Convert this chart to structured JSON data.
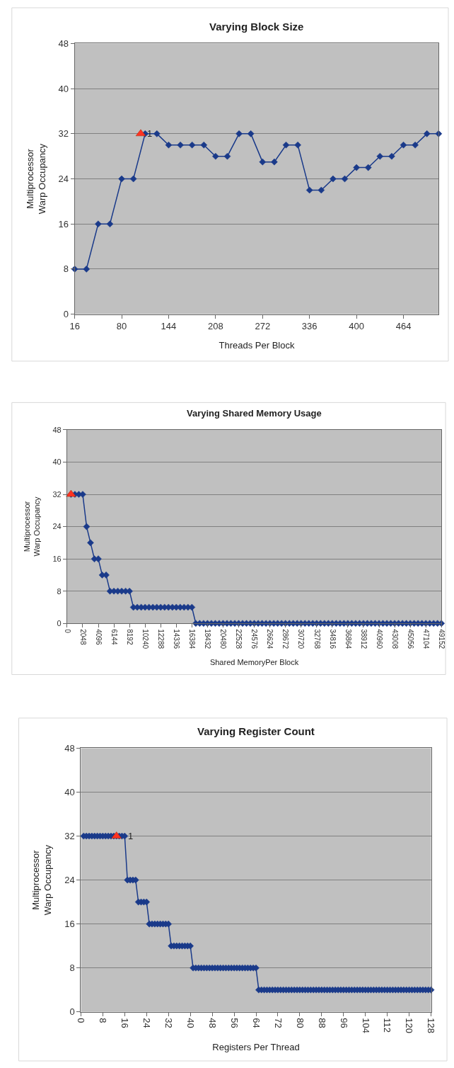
{
  "chart_data": [
    {
      "type": "line",
      "title": "Varying Block Size",
      "xlabel": "Threads Per Block",
      "ylabel": "Multiprocessor\nWarp Occupancy",
      "xlim": [
        16,
        512
      ],
      "xticks": [
        16,
        80,
        144,
        208,
        272,
        336,
        400,
        464
      ],
      "ylim": [
        0,
        48
      ],
      "yticks": [
        0,
        8,
        16,
        24,
        32,
        40,
        48
      ],
      "grid": "y",
      "marker": "diamond",
      "series": [
        {
          "color": "#1a3a8a",
          "x": [
            16,
            32,
            48,
            64,
            80,
            96,
            112,
            128,
            144,
            160,
            176,
            192,
            208,
            224,
            240,
            256,
            272,
            288,
            304,
            320,
            336,
            352,
            368,
            384,
            400,
            416,
            432,
            448,
            464,
            480,
            496,
            512
          ],
          "values": [
            8,
            8,
            16,
            16,
            24,
            24,
            32,
            32,
            30,
            30,
            30,
            30,
            28,
            28,
            32,
            32,
            27,
            27,
            30,
            30,
            22,
            22,
            24,
            24,
            26,
            26,
            28,
            28,
            30,
            30,
            32,
            32
          ]
        },
        {
          "type": "scatter",
          "marker": "triangle",
          "color": "#ff3322",
          "x": [
            106
          ],
          "values": [
            32
          ]
        }
      ],
      "annotations": [
        {
          "text": "1",
          "x": 118,
          "y": 32
        }
      ]
    },
    {
      "type": "line",
      "title": "Varying Shared Memory Usage",
      "xlabel": "Shared MemoryPer Block",
      "ylabel": "Multiprocessor\nWarp Occupancy",
      "xlim": [
        0,
        49152
      ],
      "xticks": [
        0,
        2048,
        4096,
        6144,
        8192,
        10240,
        12288,
        14336,
        16384,
        18432,
        20480,
        22528,
        24576,
        26624,
        28672,
        30720,
        32768,
        34816,
        36864,
        38912,
        40960,
        43008,
        45056,
        47104,
        49152
      ],
      "ylim": [
        0,
        48
      ],
      "yticks": [
        0,
        8,
        16,
        24,
        32,
        40,
        48
      ],
      "grid": "y",
      "marker": "diamond",
      "series": [
        {
          "color": "#1a3a8a",
          "x": [
            512,
            1024,
            1536,
            2048,
            2560,
            3072,
            3584,
            4096,
            4608,
            5120,
            5632,
            6144,
            6656,
            7168,
            7680,
            8192,
            8704,
            9216,
            9728,
            10240,
            10752,
            11264,
            11776,
            12288,
            12800,
            13312,
            13824,
            14336,
            14848,
            15360,
            15872,
            16384,
            16896,
            17408,
            17920,
            18432,
            18944,
            19456,
            19968,
            20480,
            20992,
            21504,
            22016,
            22528,
            23040,
            23552,
            24064,
            24576,
            25088,
            25600,
            26112,
            26624,
            27136,
            27648,
            28160,
            28672,
            29184,
            29696,
            30208,
            30720,
            31232,
            31744,
            32256,
            32768,
            33280,
            33792,
            34304,
            34816,
            35328,
            35840,
            36352,
            36864,
            37376,
            37888,
            38400,
            38912,
            39424,
            39936,
            40448,
            40960,
            41472,
            41984,
            42496,
            43008,
            43520,
            44032,
            44544,
            45056,
            45568,
            46080,
            46592,
            47104,
            47616,
            48128,
            48640,
            49152
          ],
          "values": [
            32,
            32,
            32,
            32,
            24,
            20,
            16,
            16,
            12,
            12,
            8,
            8,
            8,
            8,
            8,
            8,
            4,
            4,
            4,
            4,
            4,
            4,
            4,
            4,
            4,
            4,
            4,
            4,
            4,
            4,
            4,
            4,
            0,
            0,
            0,
            0,
            0,
            0,
            0,
            0,
            0,
            0,
            0,
            0,
            0,
            0,
            0,
            0,
            0,
            0,
            0,
            0,
            0,
            0,
            0,
            0,
            0,
            0,
            0,
            0,
            0,
            0,
            0,
            0,
            0,
            0,
            0,
            0,
            0,
            0,
            0,
            0,
            0,
            0,
            0,
            0,
            0,
            0,
            0,
            0,
            0,
            0,
            0,
            0,
            0,
            0,
            0,
            0,
            0,
            0,
            0,
            0,
            0,
            0,
            0,
            0
          ]
        },
        {
          "type": "scatter",
          "marker": "triangle",
          "color": "#ff3322",
          "x": [
            512
          ],
          "values": [
            32
          ]
        }
      ]
    },
    {
      "type": "line",
      "title": "Varying Register Count",
      "xlabel": "Registers Per Thread",
      "ylabel": "Multiprocessor\nWarp Occupancy",
      "xlim": [
        0,
        128
      ],
      "xticks": [
        0,
        8,
        16,
        24,
        32,
        40,
        48,
        56,
        64,
        72,
        80,
        88,
        96,
        104,
        112,
        120,
        128
      ],
      "ylim": [
        0,
        48
      ],
      "yticks": [
        0,
        8,
        16,
        24,
        32,
        40,
        48
      ],
      "grid": "y",
      "marker": "diamond",
      "series": [
        {
          "color": "#1a3a8a",
          "x": [
            1,
            2,
            3,
            4,
            5,
            6,
            7,
            8,
            9,
            10,
            11,
            12,
            13,
            14,
            15,
            16,
            17,
            18,
            19,
            20,
            21,
            22,
            23,
            24,
            25,
            26,
            27,
            28,
            29,
            30,
            31,
            32,
            33,
            34,
            35,
            36,
            37,
            38,
            39,
            40,
            41,
            42,
            43,
            44,
            45,
            46,
            47,
            48,
            49,
            50,
            51,
            52,
            53,
            54,
            55,
            56,
            57,
            58,
            59,
            60,
            61,
            62,
            63,
            64,
            65,
            66,
            67,
            68,
            69,
            70,
            71,
            72,
            73,
            74,
            75,
            76,
            77,
            78,
            79,
            80,
            81,
            82,
            83,
            84,
            85,
            86,
            87,
            88,
            89,
            90,
            91,
            92,
            93,
            94,
            95,
            96,
            97,
            98,
            99,
            100,
            101,
            102,
            103,
            104,
            105,
            106,
            107,
            108,
            109,
            110,
            111,
            112,
            113,
            114,
            115,
            116,
            117,
            118,
            119,
            120,
            121,
            122,
            123,
            124,
            125,
            126,
            127,
            128
          ],
          "values": [
            32,
            32,
            32,
            32,
            32,
            32,
            32,
            32,
            32,
            32,
            32,
            32,
            32,
            32,
            32,
            32,
            24,
            24,
            24,
            24,
            20,
            20,
            20,
            20,
            16,
            16,
            16,
            16,
            16,
            16,
            16,
            16,
            12,
            12,
            12,
            12,
            12,
            12,
            12,
            12,
            8,
            8,
            8,
            8,
            8,
            8,
            8,
            8,
            8,
            8,
            8,
            8,
            8,
            8,
            8,
            8,
            8,
            8,
            8,
            8,
            8,
            8,
            8,
            8,
            4,
            4,
            4,
            4,
            4,
            4,
            4,
            4,
            4,
            4,
            4,
            4,
            4,
            4,
            4,
            4,
            4,
            4,
            4,
            4,
            4,
            4,
            4,
            4,
            4,
            4,
            4,
            4,
            4,
            4,
            4,
            4,
            4,
            4,
            4,
            4,
            4,
            4,
            4,
            4,
            4,
            4,
            4,
            4,
            4,
            4,
            4,
            4,
            4,
            4,
            4,
            4,
            4,
            4,
            4,
            4,
            4,
            4,
            4,
            4,
            4,
            4,
            4,
            4
          ]
        },
        {
          "type": "scatter",
          "marker": "triangle",
          "color": "#ff3322",
          "x": [
            13
          ],
          "values": [
            32
          ]
        }
      ],
      "annotations": [
        {
          "text": "1",
          "x": 18,
          "y": 32
        }
      ]
    }
  ]
}
